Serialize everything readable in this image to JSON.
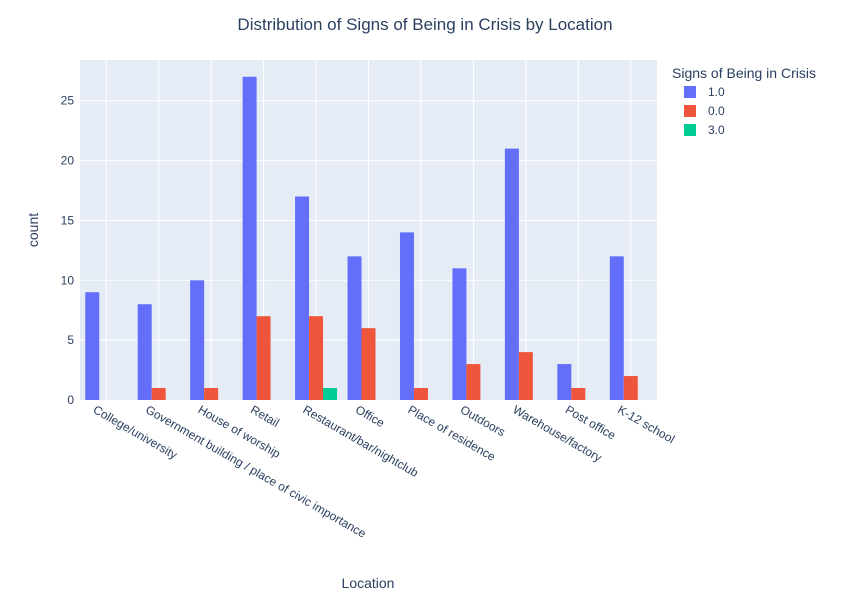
{
  "chart_data": {
    "type": "bar",
    "title": "Distribution of Signs of Being in Crisis by Location",
    "xlabel": "Location",
    "ylabel": "count",
    "ylim": [
      0,
      28.4
    ],
    "yticks": [
      0,
      5,
      10,
      15,
      20,
      25
    ],
    "grid": true,
    "legend_title": "Signs of Being in Crisis",
    "legend_position": "top-right",
    "categories": [
      "College/university",
      "Government building /  place of civic importance",
      "House of worship",
      "Retail",
      "Restaurant/bar/nightclub",
      "Office",
      "Place of residence",
      "Outdoors",
      "Warehouse/factory",
      "Post office",
      "K-12 school"
    ],
    "series": [
      {
        "name": "1.0",
        "color": "#636efa",
        "values": [
          9,
          8,
          10,
          27,
          17,
          12,
          14,
          11,
          21,
          3,
          12
        ]
      },
      {
        "name": "0.0",
        "color": "#EF553B",
        "values": [
          null,
          1,
          1,
          7,
          7,
          6,
          1,
          3,
          4,
          1,
          2
        ]
      },
      {
        "name": "3.0",
        "color": "#00cc96",
        "values": [
          null,
          null,
          null,
          null,
          1,
          null,
          null,
          null,
          null,
          null,
          null
        ]
      }
    ],
    "plot_background": "#e5ecf6",
    "grid_color": "#ffffff"
  }
}
